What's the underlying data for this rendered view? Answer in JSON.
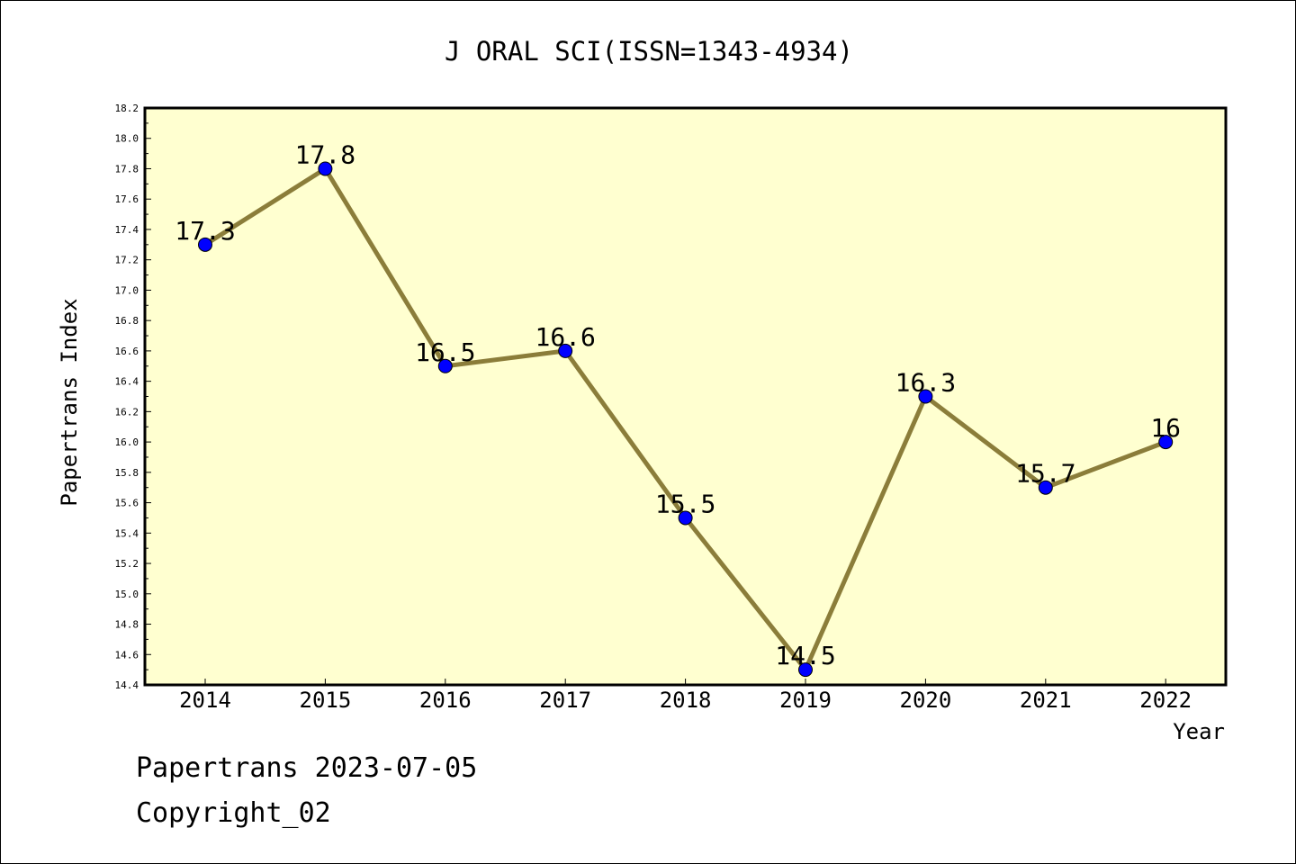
{
  "chart_data": {
    "type": "line",
    "title": "J ORAL SCI(ISSN=1343-4934)",
    "xlabel": "Year",
    "ylabel": "Papertrans Index",
    "categories": [
      "2014",
      "2015",
      "2016",
      "2017",
      "2018",
      "2019",
      "2020",
      "2021",
      "2022"
    ],
    "values": [
      17.3,
      17.8,
      16.5,
      16.6,
      15.5,
      14.5,
      16.3,
      15.7,
      16
    ],
    "data_labels": [
      "17.3",
      "17.8",
      "16.5",
      "16.6",
      "15.5",
      "14.5",
      "16.3",
      "15.7",
      "16"
    ],
    "ylim": [
      14.4,
      18.2
    ],
    "yticks": [
      "14.4",
      "14.6",
      "14.8",
      "15.0",
      "15.2",
      "15.4",
      "15.6",
      "15.8",
      "16.0",
      "16.2",
      "16.4",
      "16.6",
      "16.8",
      "17.0",
      "17.2",
      "17.4",
      "17.6",
      "17.8",
      "18.0",
      "18.2"
    ],
    "grid": false,
    "colors": {
      "line": "#8B7D3A",
      "marker": "#0000FF",
      "plot_background": "#FFFFD0"
    }
  },
  "footer": {
    "line1": "Papertrans 2023-07-05",
    "line2": "Copyright_02"
  }
}
